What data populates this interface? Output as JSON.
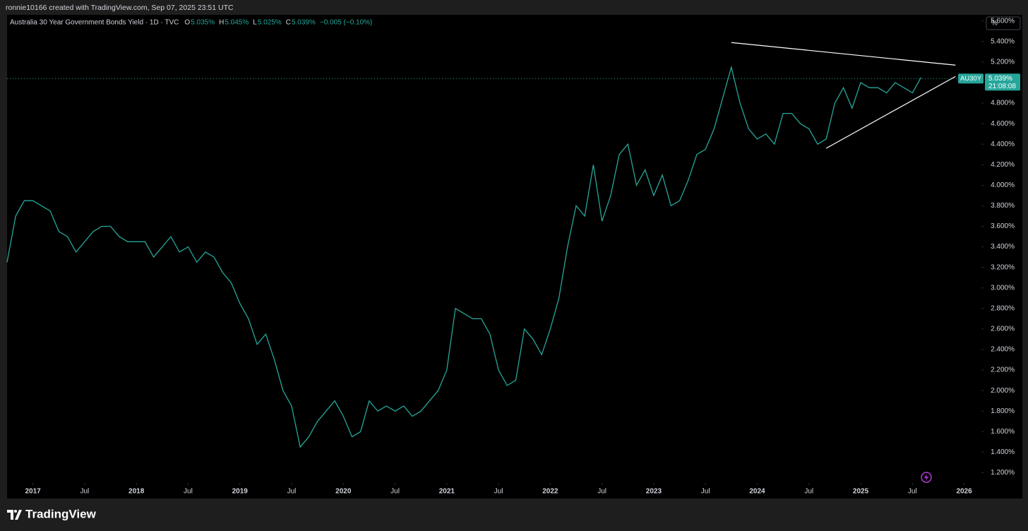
{
  "header": {
    "credit": "ronnie10166 created with TradingView.com, Sep 07, 2025 23:51 UTC"
  },
  "footer": {
    "brand": "TradingView"
  },
  "chart_data": {
    "type": "line",
    "title": "Australia 30 Year Government Bonds Yield · 1D · TVC",
    "ohlc": [
      {
        "label": "O",
        "value": "5.035%"
      },
      {
        "label": "H",
        "value": "5.045%"
      },
      {
        "label": "L",
        "value": "5.025%"
      },
      {
        "label": "C",
        "value": "5.039%"
      }
    ],
    "change": "−0.005 (−0.10%)",
    "unit_label": "%",
    "symbol": "AU30Y",
    "price": {
      "value": 5.039,
      "label": "5.039%"
    },
    "countdown": "21:08:08",
    "x": [
      "2016-10",
      "2016-11",
      "2016-12",
      "2017-01",
      "2017-02",
      "2017-03",
      "2017-04",
      "2017-05",
      "2017-06",
      "2017-07",
      "2017-08",
      "2017-09",
      "2017-10",
      "2017-11",
      "2017-12",
      "2018-01",
      "2018-02",
      "2018-03",
      "2018-04",
      "2018-05",
      "2018-06",
      "2018-07",
      "2018-08",
      "2018-09",
      "2018-10",
      "2018-11",
      "2018-12",
      "2019-01",
      "2019-02",
      "2019-03",
      "2019-04",
      "2019-05",
      "2019-06",
      "2019-07",
      "2019-08",
      "2019-09",
      "2019-10",
      "2019-11",
      "2019-12",
      "2020-01",
      "2020-02",
      "2020-03",
      "2020-04",
      "2020-05",
      "2020-06",
      "2020-07",
      "2020-08",
      "2020-09",
      "2020-10",
      "2020-11",
      "2020-12",
      "2021-01",
      "2021-02",
      "2021-03",
      "2021-04",
      "2021-05",
      "2021-06",
      "2021-07",
      "2021-08",
      "2021-09",
      "2021-10",
      "2021-11",
      "2021-12",
      "2022-01",
      "2022-02",
      "2022-03",
      "2022-04",
      "2022-05",
      "2022-06",
      "2022-07",
      "2022-08",
      "2022-09",
      "2022-10",
      "2022-11",
      "2022-12",
      "2023-01",
      "2023-02",
      "2023-03",
      "2023-04",
      "2023-05",
      "2023-06",
      "2023-07",
      "2023-08",
      "2023-09",
      "2023-10",
      "2023-11",
      "2023-12",
      "2024-01",
      "2024-02",
      "2024-03",
      "2024-04",
      "2024-05",
      "2024-06",
      "2024-07",
      "2024-08",
      "2024-09",
      "2024-10",
      "2024-11",
      "2024-12",
      "2025-01",
      "2025-02",
      "2025-03",
      "2025-04",
      "2025-05",
      "2025-06",
      "2025-07",
      "2025-08"
    ],
    "series": [
      {
        "name": "AU30Y",
        "color": "#26a69a",
        "values": [
          3.25,
          3.7,
          3.85,
          3.85,
          3.8,
          3.75,
          3.55,
          3.5,
          3.35,
          3.45,
          3.55,
          3.6,
          3.6,
          3.5,
          3.45,
          3.45,
          3.45,
          3.3,
          3.4,
          3.5,
          3.35,
          3.4,
          3.25,
          3.35,
          3.3,
          3.15,
          3.05,
          2.85,
          2.7,
          2.45,
          2.55,
          2.3,
          2.0,
          1.85,
          1.45,
          1.55,
          1.7,
          1.8,
          1.9,
          1.75,
          1.55,
          1.6,
          1.9,
          1.8,
          1.85,
          1.8,
          1.85,
          1.75,
          1.8,
          1.9,
          2.0,
          2.2,
          2.8,
          2.75,
          2.7,
          2.7,
          2.55,
          2.2,
          2.05,
          2.1,
          2.6,
          2.5,
          2.35,
          2.6,
          2.9,
          3.4,
          3.8,
          3.7,
          4.2,
          3.65,
          3.9,
          4.3,
          4.4,
          4.0,
          4.15,
          3.9,
          4.1,
          3.8,
          3.85,
          4.05,
          4.3,
          4.35,
          4.55,
          4.85,
          5.15,
          4.8,
          4.55,
          4.45,
          4.5,
          4.4,
          4.7,
          4.7,
          4.6,
          4.55,
          4.4,
          4.45,
          4.8,
          4.95,
          4.75,
          5.0,
          4.95,
          4.95,
          4.9,
          5.0,
          4.95,
          4.9,
          5.05
        ]
      }
    ],
    "trendlines": [
      {
        "x": [
          "2023-10",
          "2025-12"
        ],
        "values": [
          5.39,
          5.17
        ],
        "color": "#ffffff"
      },
      {
        "x": [
          "2024-09",
          "2025-12"
        ],
        "values": [
          4.36,
          5.06
        ],
        "color": "#ffffff"
      }
    ],
    "xlim": [
      "2016-10",
      "2026-03"
    ],
    "xticks": [
      {
        "value": "2017-01",
        "label": "2017"
      },
      {
        "value": "2017-07",
        "label": "Jul"
      },
      {
        "value": "2018-01",
        "label": "2018"
      },
      {
        "value": "2018-07",
        "label": "Jul"
      },
      {
        "value": "2019-01",
        "label": "2019"
      },
      {
        "value": "2019-07",
        "label": "Jul"
      },
      {
        "value": "2020-01",
        "label": "2020"
      },
      {
        "value": "2020-07",
        "label": "Jul"
      },
      {
        "value": "2021-01",
        "label": "2021"
      },
      {
        "value": "2021-07",
        "label": "Jul"
      },
      {
        "value": "2022-01",
        "label": "2022"
      },
      {
        "value": "2022-07",
        "label": "Jul"
      },
      {
        "value": "2023-01",
        "label": "2023"
      },
      {
        "value": "2023-07",
        "label": "Jul"
      },
      {
        "value": "2024-01",
        "label": "2024"
      },
      {
        "value": "2024-07",
        "label": "Jul"
      },
      {
        "value": "2025-01",
        "label": "2025"
      },
      {
        "value": "2025-07",
        "label": "Jul"
      },
      {
        "value": "2026-01",
        "label": "2026"
      }
    ],
    "ylim": [
      1.1,
      5.66
    ],
    "yticks": [
      {
        "value": 1.2,
        "label": "1.200%"
      },
      {
        "value": 1.4,
        "label": "1.400%"
      },
      {
        "value": 1.6,
        "label": "1.600%"
      },
      {
        "value": 1.8,
        "label": "1.800%"
      },
      {
        "value": 2.0,
        "label": "2.000%"
      },
      {
        "value": 2.2,
        "label": "2.200%"
      },
      {
        "value": 2.4,
        "label": "2.400%"
      },
      {
        "value": 2.6,
        "label": "2.600%"
      },
      {
        "value": 2.8,
        "label": "2.800%"
      },
      {
        "value": 3.0,
        "label": "3.000%"
      },
      {
        "value": 3.2,
        "label": "3.200%"
      },
      {
        "value": 3.4,
        "label": "3.400%"
      },
      {
        "value": 3.6,
        "label": "3.600%"
      },
      {
        "value": 3.8,
        "label": "3.800%"
      },
      {
        "value": 4.0,
        "label": "4.000%"
      },
      {
        "value": 4.2,
        "label": "4.200%"
      },
      {
        "value": 4.4,
        "label": "4.400%"
      },
      {
        "value": 4.6,
        "label": "4.600%"
      },
      {
        "value": 4.8,
        "label": "4.800%"
      },
      {
        "value": 5.0,
        "label": "5.000%"
      },
      {
        "value": 5.2,
        "label": "5.200%"
      },
      {
        "value": 5.4,
        "label": "5.400%"
      },
      {
        "value": 5.6,
        "label": "5.600%"
      }
    ],
    "grid": false
  }
}
